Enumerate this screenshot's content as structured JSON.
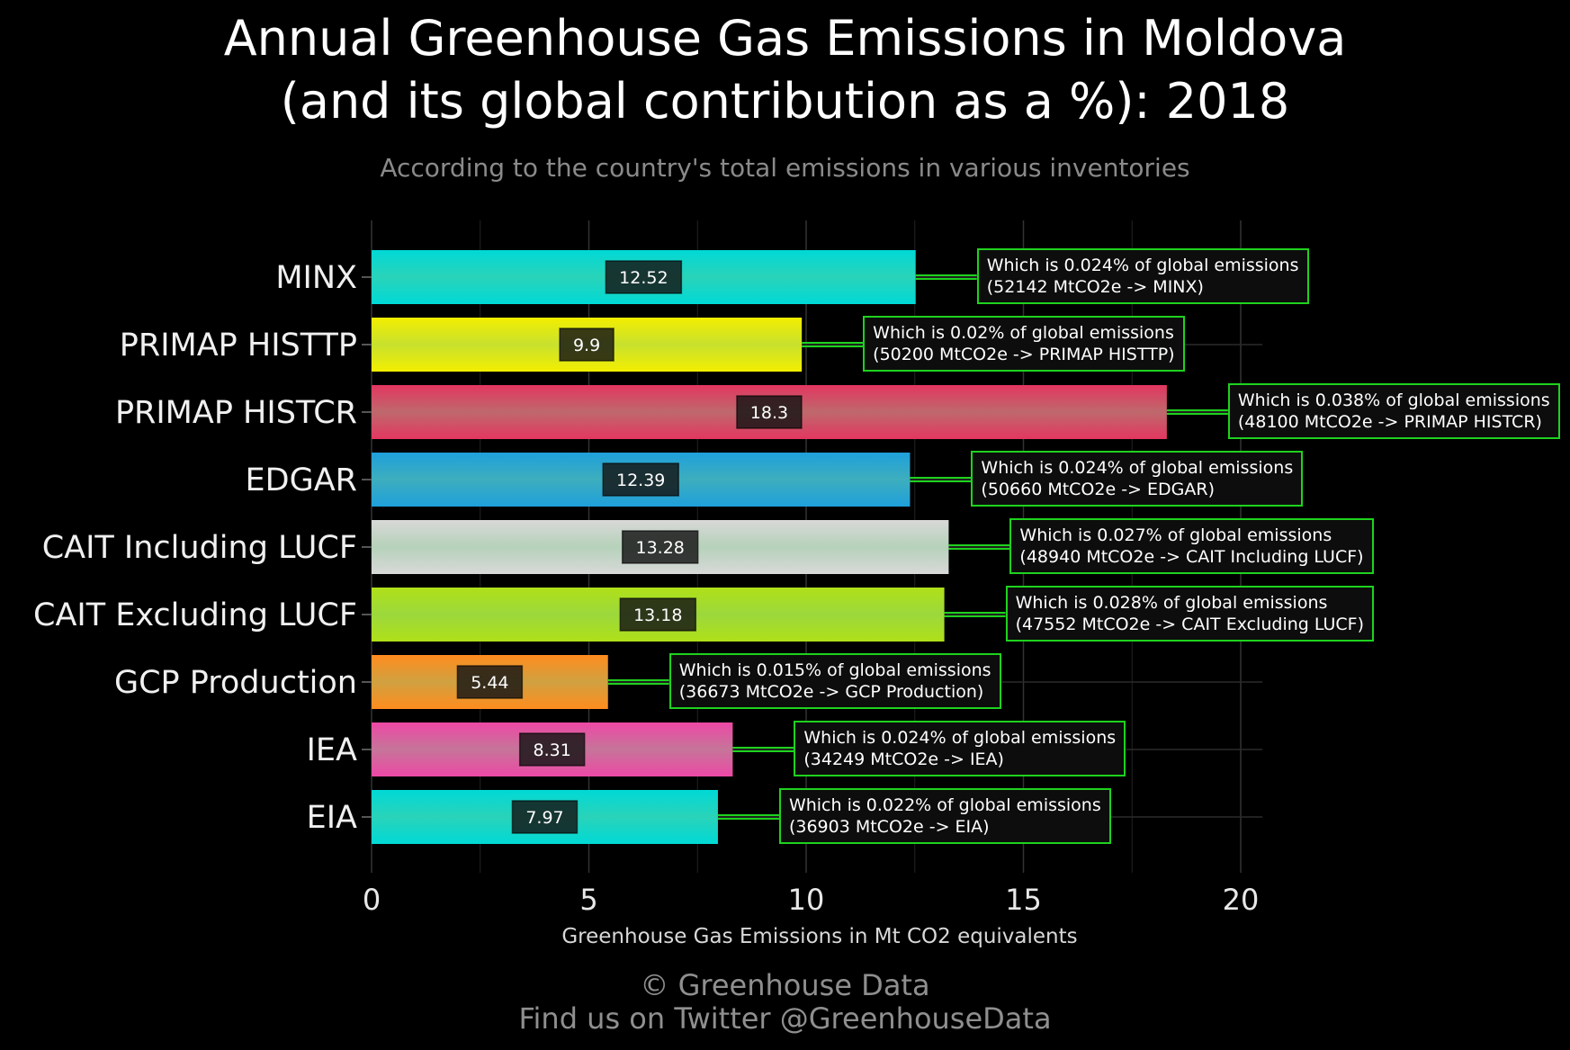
{
  "title_line1": "Annual Greenhouse Gas Emissions in Moldova",
  "title_line2": "(and its global contribution as a %): 2018",
  "subtitle": "According to the country's total emissions in various inventories",
  "footer_line1": "© Greenhouse Data",
  "footer_line2": "Find us on Twitter @GreenhouseData",
  "chart_data": {
    "type": "bar",
    "orientation": "horizontal",
    "xlabel": "Greenhouse Gas Emissions in Mt CO2 equivalents",
    "ylabel": "",
    "xlim": [
      0,
      20.5
    ],
    "xticks": [
      0,
      5,
      10,
      15,
      20
    ],
    "grid": true,
    "categories": [
      "MINX",
      "PRIMAP HISTTP",
      "PRIMAP HISTCR",
      "EDGAR",
      "CAIT Including LUCF",
      "CAIT Excluding LUCF",
      "GCP Production",
      "IEA",
      "EIA"
    ],
    "values": [
      12.52,
      9.9,
      18.3,
      12.39,
      13.28,
      13.18,
      5.44,
      8.31,
      7.97
    ],
    "value_labels": [
      "12.52",
      "9.9",
      "18.3",
      "12.39",
      "13.28",
      "13.18",
      "5.44",
      "8.31",
      "7.97"
    ],
    "colors": [
      "#00d9d6",
      "#f3ee00",
      "#e33660",
      "#1ea0dc",
      "#d8d8d8",
      "#b0e018",
      "#ff8c1e",
      "#ee48a6",
      "#00d9d6"
    ],
    "annotations": [
      {
        "line1": "Which is 0.024% of global emissions",
        "line2": "(52142 MtCO2e -> MINX)"
      },
      {
        "line1": "Which is 0.02% of global emissions",
        "line2": "(50200 MtCO2e -> PRIMAP HISTTP)"
      },
      {
        "line1": "Which is 0.038% of global emissions",
        "line2": "(48100 MtCO2e -> PRIMAP HISTCR)"
      },
      {
        "line1": "Which is 0.024% of global emissions",
        "line2": "(50660 MtCO2e -> EDGAR)"
      },
      {
        "line1": "Which is 0.027% of global emissions",
        "line2": "(48940 MtCO2e -> CAIT Including LUCF)"
      },
      {
        "line1": "Which is 0.028% of global emissions",
        "line2": "(47552 MtCO2e -> CAIT Excluding LUCF)"
      },
      {
        "line1": "Which is 0.015% of global emissions",
        "line2": "(36673 MtCO2e -> GCP Production)"
      },
      {
        "line1": "Which is 0.024% of global emissions",
        "line2": "(34249 MtCO2e -> IEA)"
      },
      {
        "line1": "Which is 0.022% of global emissions",
        "line2": "(36903 MtCO2e -> EIA)"
      }
    ]
  }
}
